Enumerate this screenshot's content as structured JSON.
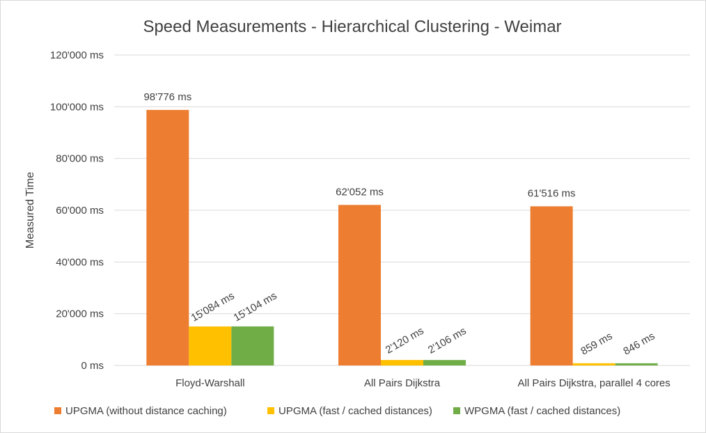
{
  "chart_data": {
    "type": "bar",
    "title": "Speed Measurements - Hierarchical Clustering  - Weimar",
    "xlabel": "",
    "ylabel": "Measured Time",
    "ylim": [
      0,
      120000
    ],
    "ytick_values": [
      0,
      20000,
      40000,
      60000,
      80000,
      100000,
      120000
    ],
    "ytick_labels": [
      "0 ms",
      "20'000 ms",
      "40'000 ms",
      "60'000 ms",
      "80'000 ms",
      "100'000 ms",
      "120'000 ms"
    ],
    "grid": true,
    "legend_position": "bottom",
    "categories": [
      "Floyd-Warshall",
      "All Pairs Dijkstra",
      "All Pairs Dijkstra, parallel 4 cores"
    ],
    "series": [
      {
        "name": "UPGMA (without distance caching)",
        "color": "#ed7d31",
        "values": [
          98776,
          62052,
          61516
        ],
        "labels": [
          "98'776 ms",
          "62'052 ms",
          "61'516 ms"
        ],
        "label_rotation": 0
      },
      {
        "name": "UPGMA (fast / cached distances)",
        "color": "#ffc000",
        "values": [
          15084,
          2120,
          859
        ],
        "labels": [
          "15'084 ms",
          "2'120 ms",
          "859 ms"
        ],
        "label_rotation": -30
      },
      {
        "name": "WPGMA (fast / cached distances)",
        "color": "#70ad47",
        "values": [
          15104,
          2106,
          846
        ],
        "labels": [
          "15'104 ms",
          "2'106 ms",
          "846 ms"
        ],
        "label_rotation": -30
      }
    ]
  }
}
